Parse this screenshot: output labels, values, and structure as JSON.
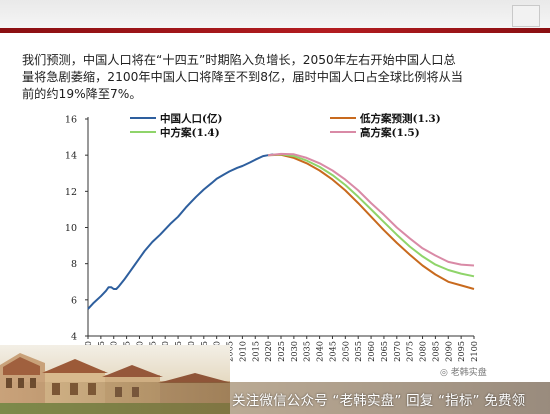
{
  "caption": {
    "line1": "我们预测，中国人口将在“十四五”时期陷入负增长，2050年左右开始中国人口总",
    "line2": "量将急剧萎缩，2100年中国人口将降至不到8亿，届时中国人口占全球比例将从当",
    "line3": "前的约19%降至7%。"
  },
  "watermark": {
    "text": "关注微信公众号 “老韩实盘” 回复 “指标” 免费领",
    "wechat_label": "老韩实盘"
  },
  "chart_data": {
    "type": "line",
    "ylim": [
      4,
      16
    ],
    "yticks": [
      4,
      6,
      8,
      10,
      12,
      14,
      16
    ],
    "xlim": [
      1950,
      2100
    ],
    "xticks": [
      "1950",
      "1955",
      "1960",
      "1965",
      "1970",
      "1975",
      "1980",
      "1985",
      "1990",
      "1995",
      "2000",
      "2005",
      "2010",
      "2015",
      "2020",
      "2025",
      "2030",
      "2035",
      "2040",
      "2045",
      "2050",
      "2055",
      "2060",
      "2065",
      "2070",
      "2075",
      "2080",
      "2085",
      "2090",
      "2095",
      "2100"
    ],
    "grid": false,
    "legend_position": "top",
    "series": [
      {
        "name": "中国人口(亿)",
        "color": "#2e5f9e",
        "x": [
          1950,
          1952,
          1955,
          1957,
          1958,
          1959,
          1960,
          1961,
          1962,
          1964,
          1966,
          1968,
          1970,
          1972,
          1975,
          1978,
          1980,
          1982,
          1985,
          1988,
          1990,
          1992,
          1995,
          1998,
          2000,
          2003,
          2005,
          2008,
          2010,
          2013,
          2015,
          2018,
          2020,
          2022
        ],
        "y": [
          5.5,
          5.8,
          6.2,
          6.5,
          6.7,
          6.7,
          6.6,
          6.6,
          6.75,
          7.1,
          7.5,
          7.9,
          8.3,
          8.7,
          9.2,
          9.6,
          9.9,
          10.2,
          10.6,
          11.1,
          11.4,
          11.7,
          12.1,
          12.45,
          12.7,
          12.95,
          13.1,
          13.3,
          13.4,
          13.6,
          13.75,
          13.95,
          14.0,
          14.05
        ]
      },
      {
        "name": "低方案预测(1.3)",
        "color": "#c86a1e",
        "x": [
          2020,
          2025,
          2030,
          2035,
          2040,
          2045,
          2050,
          2055,
          2060,
          2065,
          2070,
          2075,
          2080,
          2085,
          2090,
          2095,
          2100
        ],
        "y": [
          14.0,
          14.02,
          13.85,
          13.55,
          13.15,
          12.65,
          12.05,
          11.35,
          10.6,
          9.85,
          9.15,
          8.5,
          7.9,
          7.4,
          7.0,
          6.8,
          6.6
        ]
      },
      {
        "name": "中方案(1.4)",
        "color": "#8fd46a",
        "x": [
          2020,
          2025,
          2030,
          2035,
          2040,
          2045,
          2050,
          2055,
          2060,
          2065,
          2070,
          2075,
          2080,
          2085,
          2090,
          2095,
          2100
        ],
        "y": [
          14.0,
          14.05,
          13.95,
          13.7,
          13.35,
          12.9,
          12.35,
          11.7,
          11.0,
          10.3,
          9.6,
          8.95,
          8.4,
          7.95,
          7.65,
          7.45,
          7.3
        ]
      },
      {
        "name": "高方案(1.5)",
        "color": "#d98aa6",
        "x": [
          2020,
          2025,
          2030,
          2035,
          2040,
          2045,
          2050,
          2055,
          2060,
          2065,
          2070,
          2075,
          2080,
          2085,
          2090,
          2095,
          2100
        ],
        "y": [
          14.0,
          14.07,
          14.05,
          13.85,
          13.55,
          13.15,
          12.65,
          12.05,
          11.35,
          10.7,
          10.0,
          9.4,
          8.85,
          8.45,
          8.1,
          7.95,
          7.9
        ]
      }
    ]
  }
}
